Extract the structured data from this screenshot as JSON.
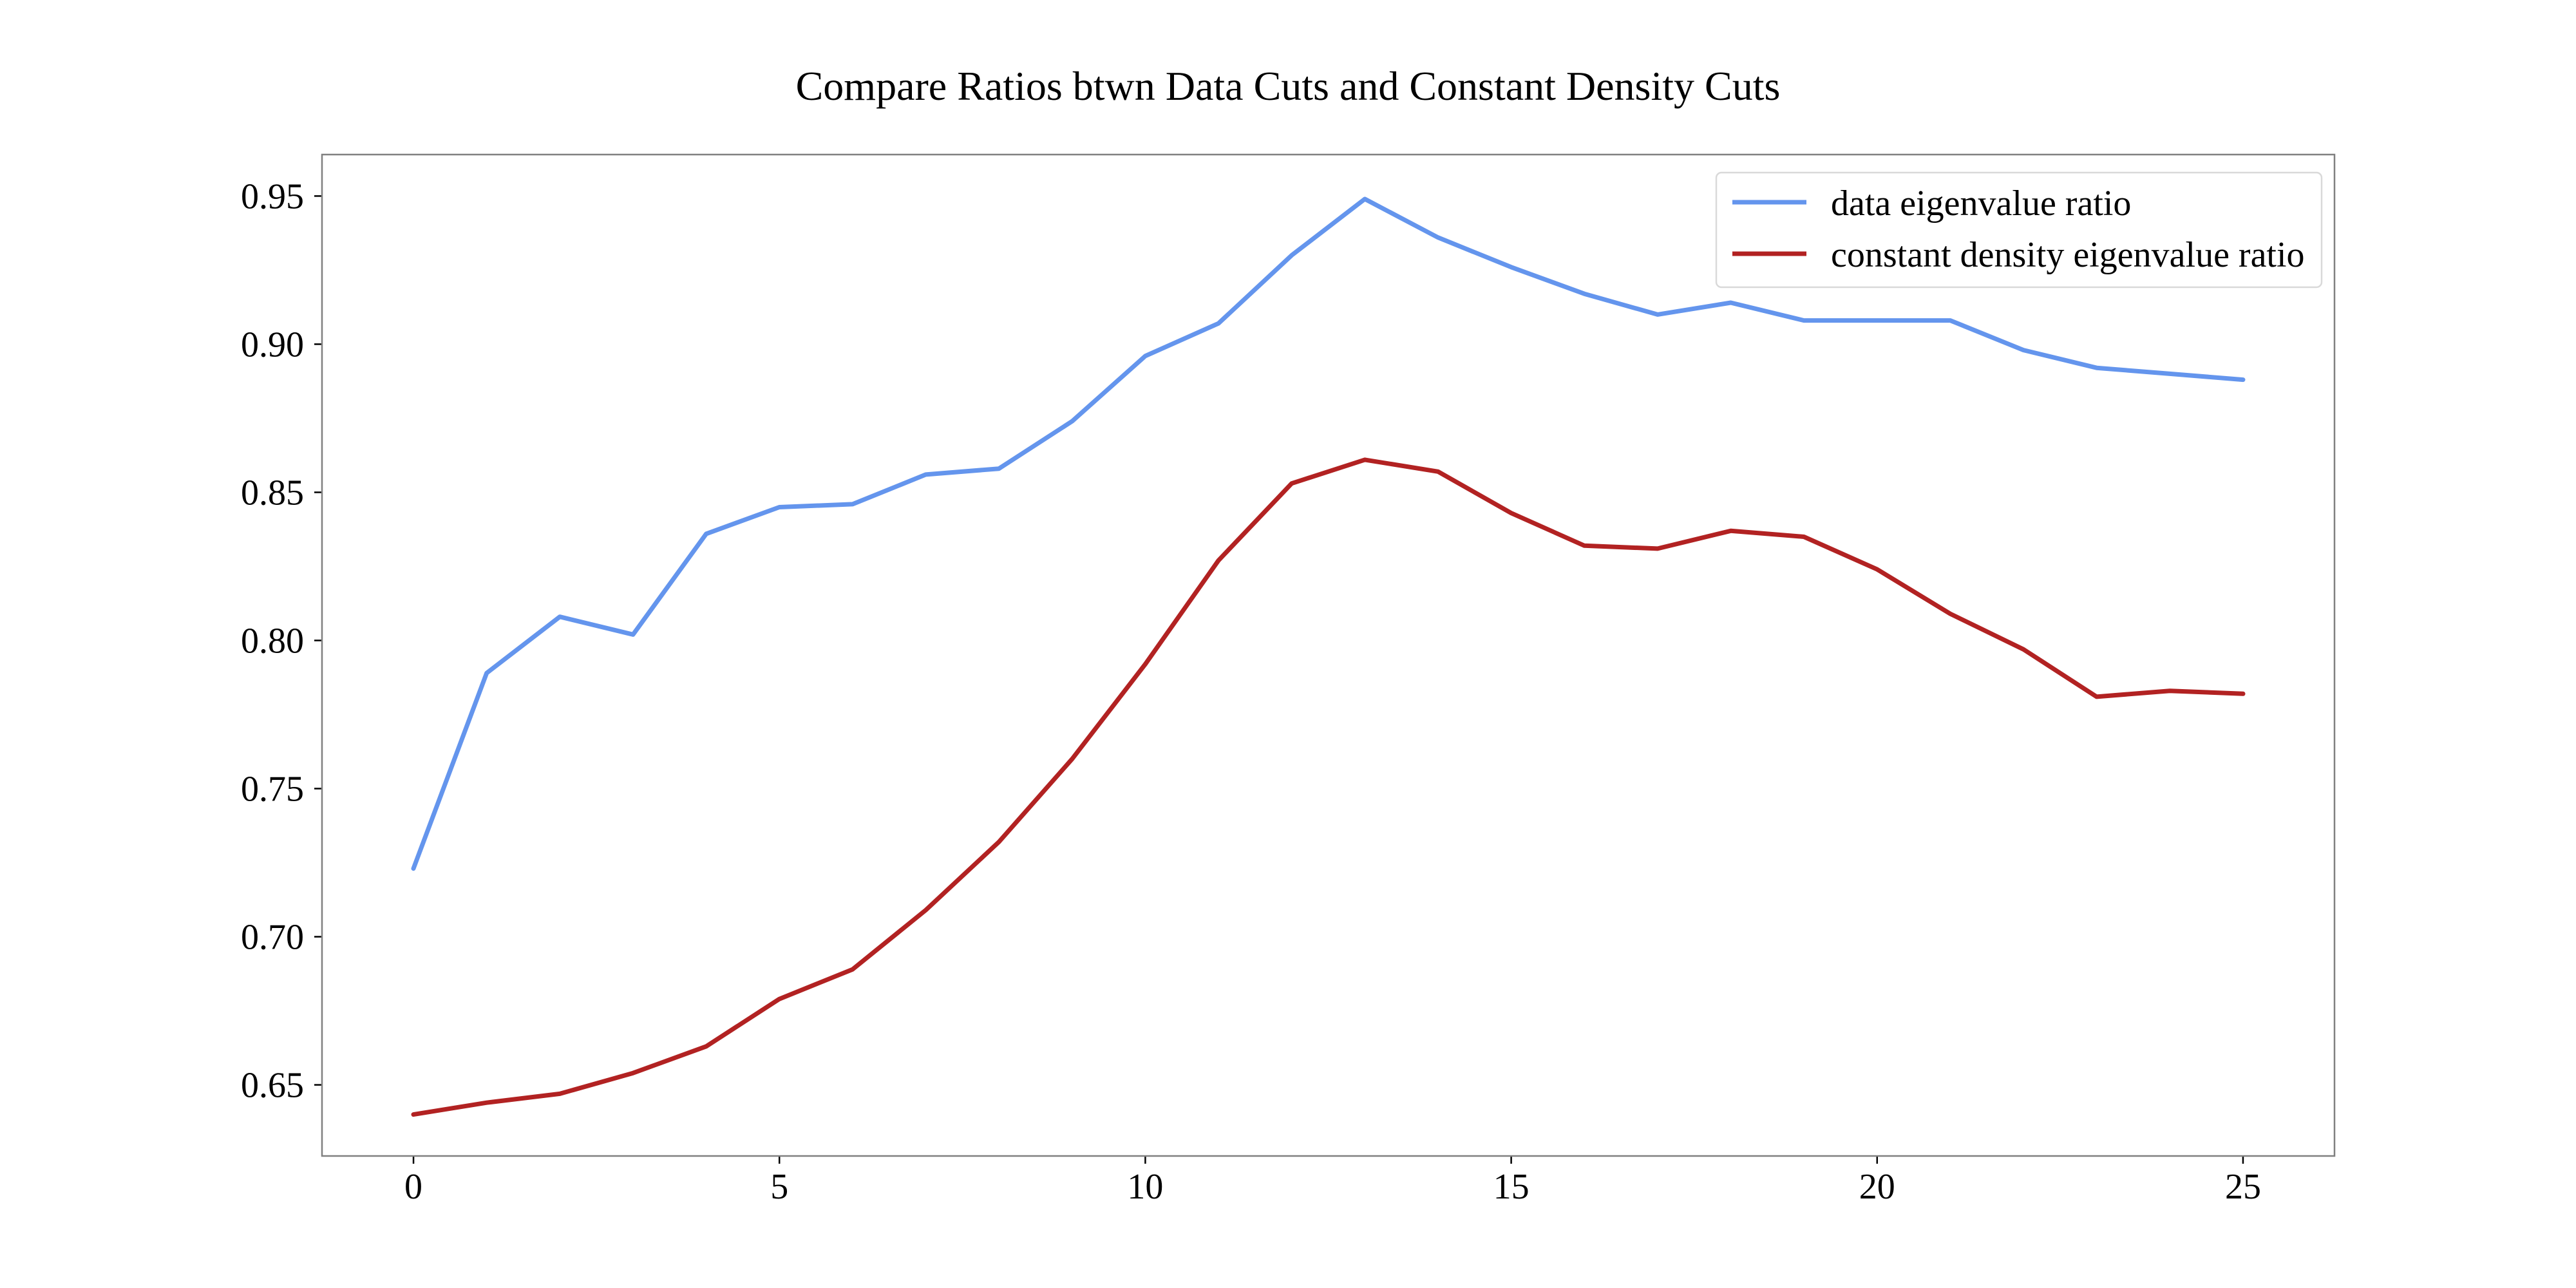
{
  "chart_data": {
    "type": "line",
    "title": "Compare Ratios btwn Data Cuts and Constant Density Cuts",
    "xlabel": "",
    "ylabel": "",
    "xlim": [
      -1.25,
      26.25
    ],
    "ylim": [
      0.626,
      0.964
    ],
    "x": [
      0,
      1,
      2,
      3,
      4,
      5,
      6,
      7,
      8,
      9,
      10,
      11,
      12,
      13,
      14,
      15,
      16,
      17,
      18,
      19,
      20,
      21,
      22,
      23,
      24,
      25
    ],
    "xticks": [
      0,
      5,
      10,
      15,
      20,
      25
    ],
    "yticks": [
      0.65,
      0.7,
      0.75,
      0.8,
      0.85,
      0.9,
      0.95
    ],
    "grid": false,
    "legend_position": "top-right",
    "series": [
      {
        "name": "data eigenvalue ratio",
        "color": "#6495ED",
        "values": [
          0.723,
          0.789,
          0.808,
          0.802,
          0.836,
          0.845,
          0.846,
          0.856,
          0.858,
          0.874,
          0.896,
          0.907,
          0.93,
          0.949,
          0.936,
          0.926,
          0.917,
          0.91,
          0.914,
          0.908,
          0.908,
          0.908,
          0.898,
          0.892,
          0.89,
          0.888
        ]
      },
      {
        "name": "constant density eigenvalue ratio",
        "color": "#B22222",
        "values": [
          0.64,
          0.644,
          0.647,
          0.654,
          0.663,
          0.679,
          0.689,
          0.709,
          0.732,
          0.76,
          0.792,
          0.827,
          0.853,
          0.861,
          0.857,
          0.843,
          0.832,
          0.831,
          0.837,
          0.835,
          0.824,
          0.809,
          0.797,
          0.781,
          0.783,
          0.782
        ]
      }
    ]
  }
}
